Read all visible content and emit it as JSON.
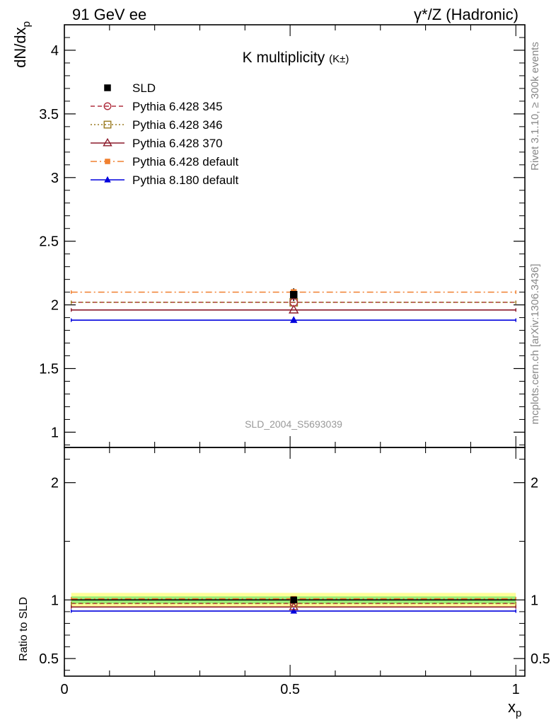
{
  "header": {
    "left": "91 GeV ee",
    "right_sym": "γ*/Z",
    "right_txt": "(Hadronic)"
  },
  "side": {
    "rivet": "Rivet 3.1.10, ≥ 300k events",
    "mcplots": "mcplots.cern.ch [arXiv:1306.3436]"
  },
  "analysis_id": "SLD_2004_S5693039",
  "chart_data": [
    {
      "type": "scatter",
      "title": "K multiplicity",
      "title_sub": "(K±)",
      "ylabel": "dN/dx",
      "ylabel_sub": "p",
      "ylim": [
        0.88,
        4.2
      ],
      "yticks": [
        1,
        1.5,
        2,
        2.5,
        3,
        3.5,
        4
      ],
      "ytick_labels": [
        "1",
        "1.5",
        "2",
        "2.5",
        "3",
        "3.5",
        "4"
      ],
      "xlim": [
        0,
        1.02
      ],
      "x_range": [
        0.0152,
        1.0
      ],
      "x_center": 0.508,
      "series": [
        {
          "name": "SLD",
          "value": 2.08,
          "color": "#000000",
          "marker": "square",
          "line": "none"
        },
        {
          "name": "Pythia 6.428 345",
          "value": 2.02,
          "color": "#b03040",
          "marker": "circle-open",
          "line": "dashed"
        },
        {
          "name": "Pythia 6.428 346",
          "value": 2.02,
          "color": "#9a7a20",
          "marker": "square-open",
          "line": "dotted"
        },
        {
          "name": "Pythia 6.428 370",
          "value": 1.96,
          "color": "#8b1a2a",
          "marker": "triangle-open",
          "line": "solid"
        },
        {
          "name": "Pythia 6.428 default",
          "value": 2.1,
          "color": "#f08030",
          "marker": "square-small",
          "line": "dashdot"
        },
        {
          "name": "Pythia 8.180 default",
          "value": 1.88,
          "color": "#0000dd",
          "marker": "triangle",
          "line": "solid"
        }
      ]
    },
    {
      "type": "scatter",
      "ylabel": "Ratio to SLD",
      "ylim": [
        0.35,
        2.3
      ],
      "yticks": [
        0.5,
        1,
        2
      ],
      "ytick_labels": [
        "0.5",
        "1",
        "2"
      ],
      "xlabel": "x",
      "xlabel_sub": "p",
      "xticks": [
        0,
        0.5,
        1
      ],
      "xtick_labels": [
        "0",
        "0.5",
        "1"
      ],
      "bands": {
        "outer": {
          "low": 0.94,
          "high": 1.06,
          "color": "#ffff99"
        },
        "inner": {
          "low": 0.97,
          "high": 1.03,
          "color": "#99ee77"
        }
      },
      "series": [
        {
          "name": "SLD",
          "value": 1.0
        },
        {
          "name": "Pythia 6.428 345",
          "value": 0.97
        },
        {
          "name": "Pythia 6.428 346",
          "value": 0.97
        },
        {
          "name": "Pythia 6.428 370",
          "value": 0.94
        },
        {
          "name": "Pythia 6.428 default",
          "value": 1.01
        },
        {
          "name": "Pythia 8.180 default",
          "value": 0.905
        }
      ]
    }
  ]
}
